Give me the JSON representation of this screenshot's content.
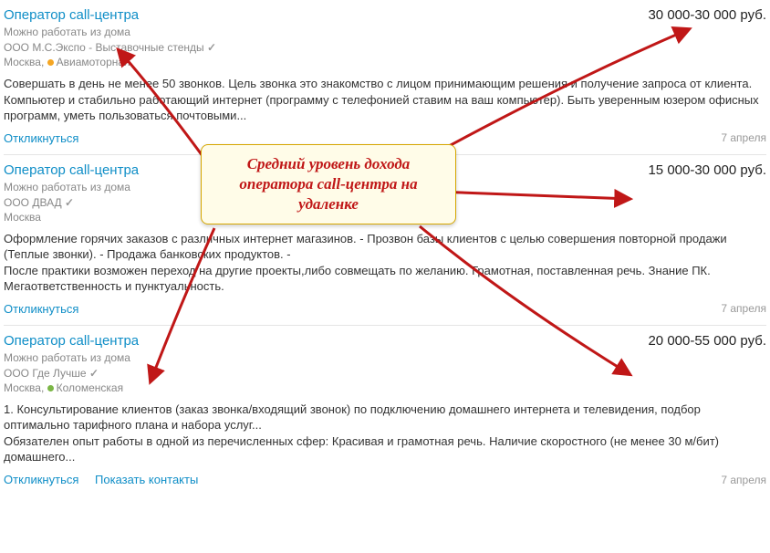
{
  "annotation_box": {
    "text": "Средний уровень дохода оператора call-центра на удаленке",
    "bg_color": "#fffce8",
    "border_color": "#d6a700",
    "text_color": "#c01717"
  },
  "arrow_color": "#c01717",
  "listings": [
    {
      "title": "Оператор call-центра",
      "salary": "30 000-30 000 руб.",
      "remote": "Можно работать из дома",
      "company": "ООО М.С.Экспо - Выставочные стенды",
      "location_city": "Москва",
      "location_metro": "Авиамоторная",
      "metro_dot_color": "#f5a623",
      "desc": "Совершать в день не менее 50 звонков. Цель звонка это знакомство с лицом принимающим решения и получение запроса от клиента. Компьютер и стабильно работающий интернет (программу с телефонией ставим на ваш компьютер). Быть уверенным юзером офисных программ, уметь пользоваться почтовыми...",
      "action": "Откликнуться",
      "action2": "",
      "date": "7 апреля"
    },
    {
      "title": "Оператор call-центра",
      "salary": "15 000-30 000 руб.",
      "remote": "Можно работать из дома",
      "company": "ООО ДВАД",
      "location_city": "Москва",
      "location_metro": "",
      "metro_dot_color": "",
      "desc": "Оформление горячих заказов с различных интернет магазинов. - Прозвон базы клиентов с целью совершения повторной продажи (Теплые звонки). - Продажа банковских продуктов. -\nПосле практики возможен переход на другие проекты,либо совмещать по желанию. Грамотная, поставленная речь. Знание ПК. Мегаответственность и пунктуальность.",
      "action": "Откликнуться",
      "action2": "",
      "date": "7 апреля"
    },
    {
      "title": "Оператор call-центра",
      "salary": "20 000-55 000 руб.",
      "remote": "Можно работать из дома",
      "company": "ООО Где Лучше",
      "location_city": "Москва",
      "location_metro": "Коломенская",
      "metro_dot_color": "#7bb646",
      "desc": "1. Консультирование клиентов (заказ звонка/входящий звонок) по подключению домашнего интернета и телевидения, подбор оптимально тарифного плана и набора услуг...\nОбязателен опыт работы в одной из перечисленных сфер: Красивая и грамотная речь. Наличие скоростного (не менее 30 м/бит) домашнего...",
      "action": "Откликнуться",
      "action2": "Показать контакты",
      "date": "7 апреля"
    }
  ]
}
